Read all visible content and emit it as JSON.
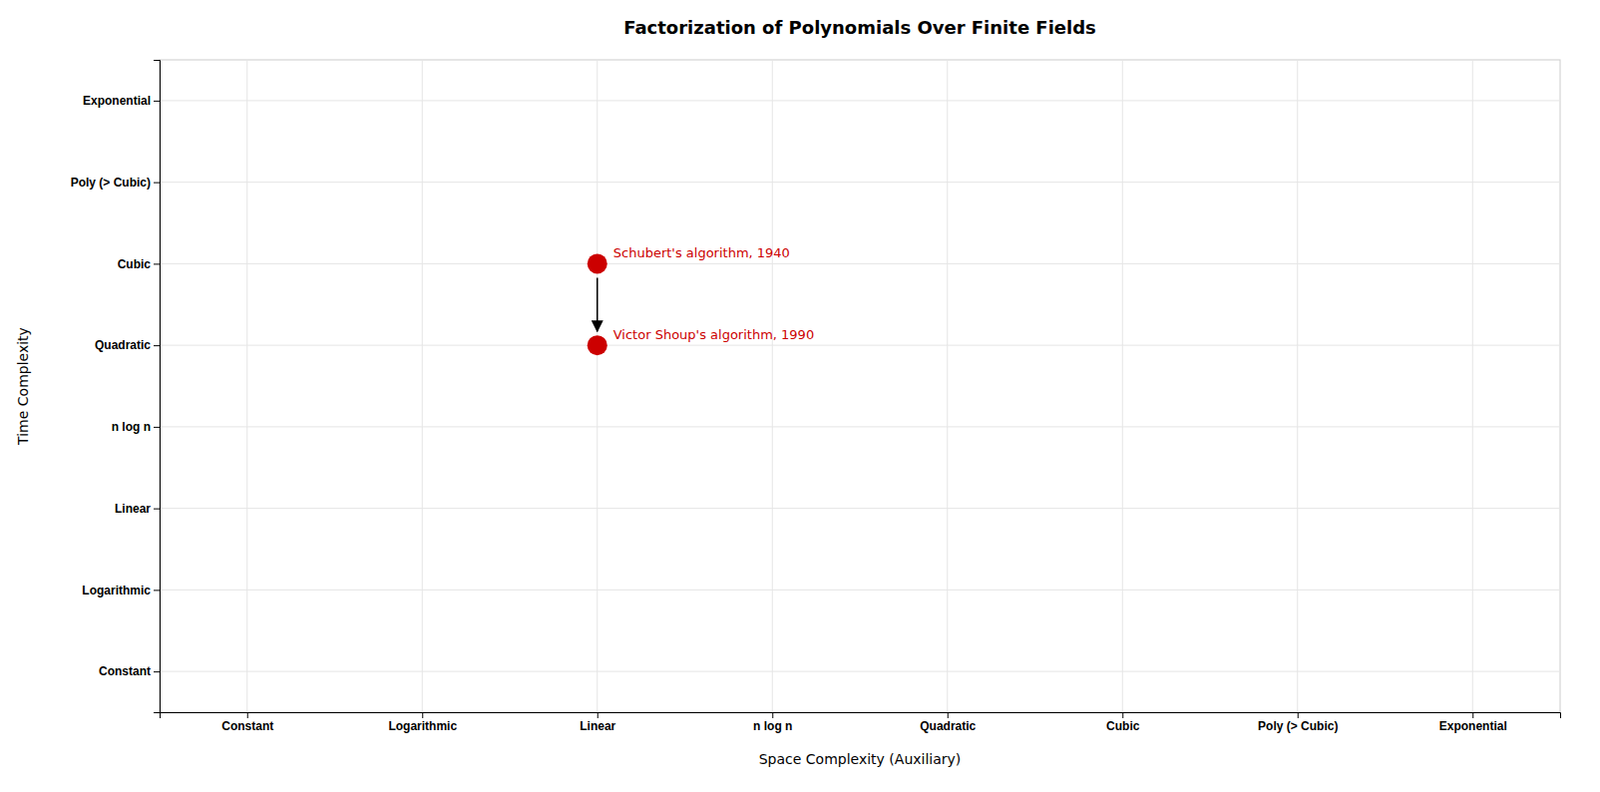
{
  "chart_data": {
    "type": "scatter",
    "title": "Factorization of Polynomials Over Finite Fields",
    "xlabel": "Space Complexity (Auxiliary)",
    "ylabel": "Time Complexity",
    "x_categories": [
      "Constant",
      "Logarithmic",
      "Linear",
      "n log n",
      "Quadratic",
      "Cubic",
      "Poly (> Cubic)",
      "Exponential"
    ],
    "y_categories": [
      "Constant",
      "Logarithmic",
      "Linear",
      "n log n",
      "Quadratic",
      "Cubic",
      "Poly (> Cubic)",
      "Exponential"
    ],
    "series": [
      {
        "x": [
          "Linear",
          "Linear"
        ],
        "values": [
          "Cubic",
          "Quadratic"
        ],
        "labels": [
          "Schubert's algorithm, 1940",
          "Victor Shoup's algorithm, 1990"
        ],
        "color": "#cc0000"
      }
    ],
    "annotations": [
      {
        "type": "arrow",
        "from": [
          "Linear",
          "Cubic"
        ],
        "to": [
          "Linear",
          "Quadratic"
        ],
        "color": "black"
      }
    ],
    "grid": true
  }
}
